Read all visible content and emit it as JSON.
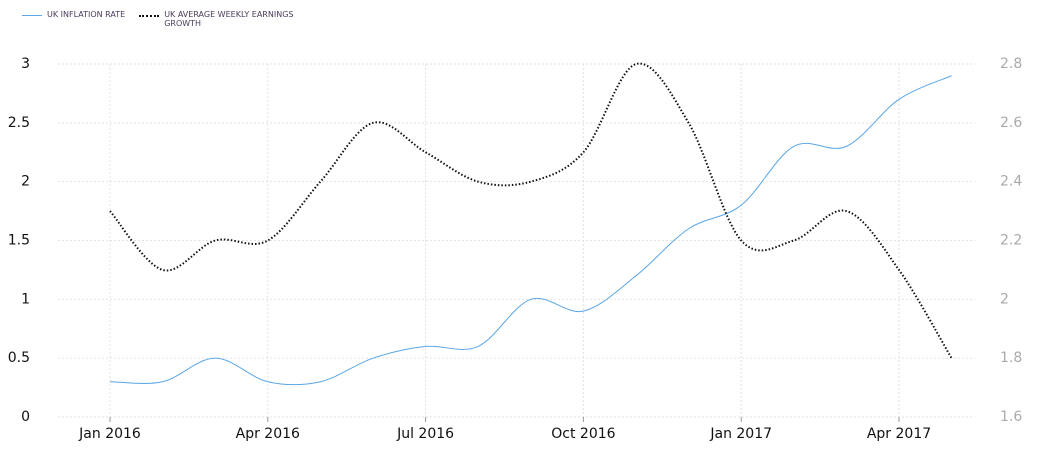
{
  "chart_data": {
    "type": "line",
    "categories": [
      "Jan 2016",
      null,
      null,
      "Apr 2016",
      null,
      null,
      "Jul 2016",
      null,
      null,
      "Oct 2016",
      null,
      null,
      "Jan 2017",
      null,
      null,
      "Apr 2017",
      null
    ],
    "series": [
      {
        "name": "UK INFLATION RATE",
        "color": "#5aa6e6",
        "axis": "y",
        "values": [
          0.3,
          0.3,
          0.5,
          0.3,
          0.3,
          0.5,
          0.6,
          0.6,
          1.0,
          0.9,
          1.2,
          1.6,
          1.8,
          2.3,
          2.3,
          2.7,
          2.9
        ]
      },
      {
        "name": "UK AVERAGE WEEKLY EARNINGS GROWTH",
        "color": "#111111",
        "axis": "y2",
        "values": [
          2.3,
          2.1,
          2.2,
          2.2,
          2.4,
          2.6,
          2.5,
          2.4,
          2.4,
          2.5,
          2.8,
          2.6,
          2.2,
          2.2,
          2.3,
          2.1,
          1.8
        ]
      }
    ],
    "ylim": [
      0,
      3
    ],
    "yticks": [
      0,
      0.5,
      1,
      1.5,
      2,
      2.5,
      3
    ],
    "y2lim": [
      1.6,
      2.8
    ],
    "y2ticks": [
      1.6,
      1.8,
      2,
      2.2,
      2.4,
      2.6,
      2.8
    ],
    "grid": true
  }
}
